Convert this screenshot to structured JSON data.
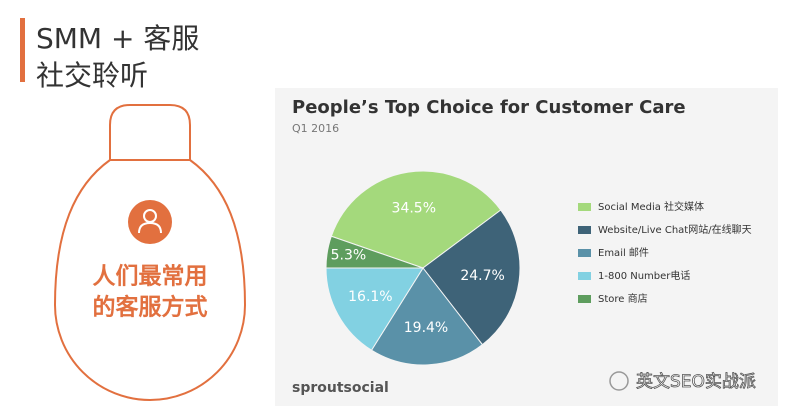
{
  "slide": {
    "title_line1": "SMM + 客服",
    "title_line2": "社交聆听",
    "bulb_line1": "人们最常用",
    "bulb_line2": "的客服方式",
    "logo": "sproutsocial",
    "watermark": "英文SEO实战派"
  },
  "chart_data": {
    "type": "pie",
    "title": "People’s Top Choice for Customer Care",
    "subtitle": "Q1 2016",
    "categories": [
      "Social Media 社交媒体",
      "Website/Live Chat网站/在线聊天",
      "Email 邮件",
      "1-800 Number电话",
      "Store  商店"
    ],
    "values": [
      34.5,
      24.7,
      19.4,
      16.1,
      5.3
    ],
    "value_labels": [
      "34.5%",
      "24.7%",
      "19.4%",
      "16.1%",
      "5.3%"
    ],
    "colors": [
      "#a4d97c",
      "#3e6378",
      "#5a91a8",
      "#82d1e2",
      "#5e9d5e"
    ]
  }
}
